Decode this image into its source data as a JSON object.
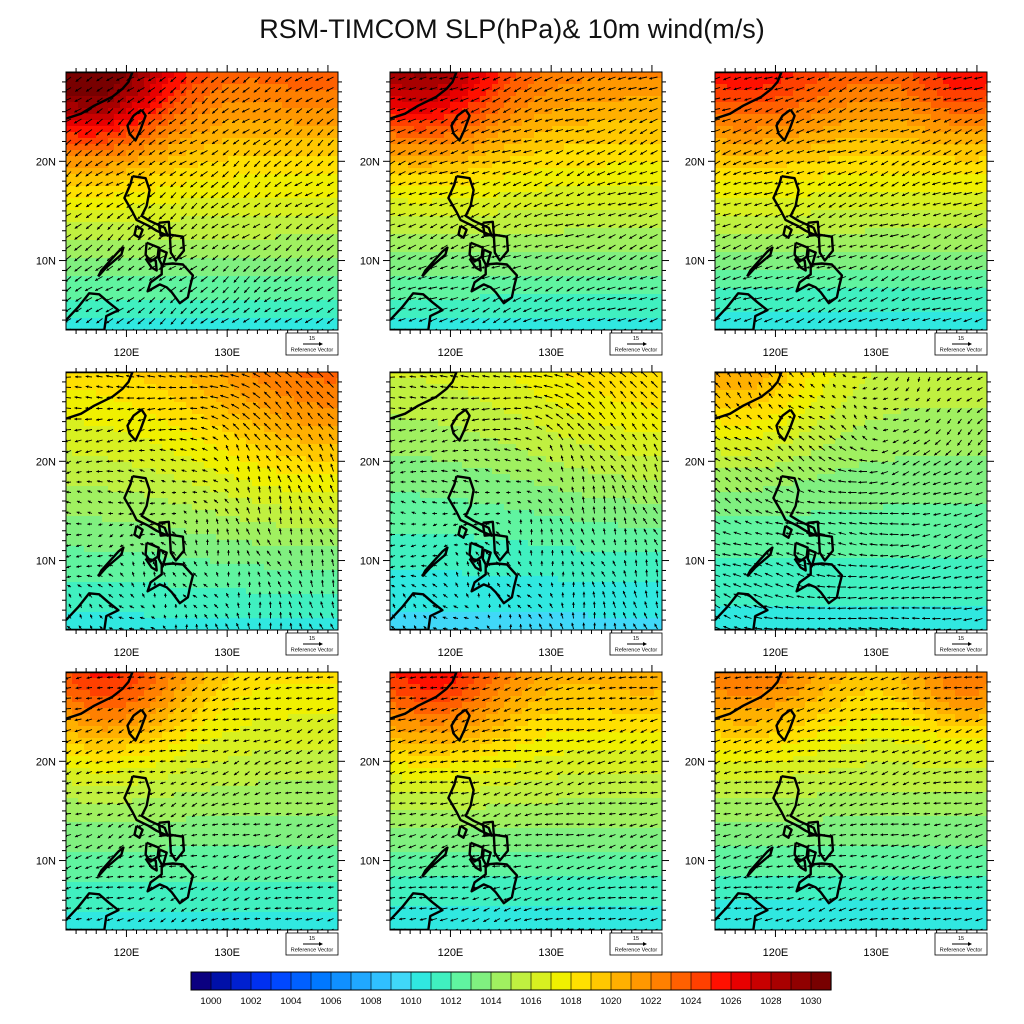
{
  "title": "RSM-TIMCOM SLP(hPa)& 10m wind(m/s)",
  "map": {
    "lon_range": [
      114,
      141
    ],
    "lat_range": [
      3,
      29
    ],
    "lon_ticks": [
      {
        "value": 120,
        "label": "120E"
      },
      {
        "value": 130,
        "label": "130E"
      }
    ],
    "lat_ticks": [
      {
        "value": 10,
        "label": "10N"
      },
      {
        "value": 20,
        "label": "20N"
      }
    ]
  },
  "reference_vector": {
    "value": "15",
    "label": "Reference Vector"
  },
  "colorbar": {
    "min": 999,
    "max": 1031,
    "labels": [
      "1000",
      "1002",
      "1004",
      "1006",
      "1008",
      "1010",
      "1012",
      "1014",
      "1016",
      "1018",
      "1020",
      "1022",
      "1024",
      "1026",
      "1028",
      "1030"
    ],
    "colors": [
      "#0b0080",
      "#0010a8",
      "#0020d0",
      "#0030f0",
      "#0048ff",
      "#0060ff",
      "#0078ff",
      "#1090ff",
      "#20a8ff",
      "#30c0ff",
      "#40d8f8",
      "#30e8e0",
      "#40f0c0",
      "#60f4a0",
      "#80f080",
      "#a0f060",
      "#c0f040",
      "#d8f020",
      "#f0f000",
      "#ffe000",
      "#ffc800",
      "#ffb000",
      "#ff9800",
      "#ff8000",
      "#ff6000",
      "#ff4000",
      "#ff1000",
      "#e80000",
      "#c80000",
      "#a80000",
      "#900000",
      "#780000"
    ]
  },
  "panels": [
    {
      "base": 1010.5,
      "lat_grad": 0.48,
      "hi_center": [
        116,
        29
      ],
      "hi_amp": 9,
      "hi_rad": 6,
      "ne_amp": 1,
      "u": -4,
      "v": -3,
      "swirl": 0
    },
    {
      "base": 1010.5,
      "lat_grad": 0.45,
      "hi_center": [
        117,
        29
      ],
      "hi_amp": 7,
      "hi_rad": 6,
      "ne_amp": 0,
      "u": -5,
      "v": -2,
      "swirl": 0
    },
    {
      "base": 1010,
      "lat_grad": 0.5,
      "hi_center": [
        117,
        29
      ],
      "hi_amp": 3,
      "hi_rad": 6,
      "ne_amp": 3,
      "u": -5,
      "v": -2,
      "swirl": 0
    },
    {
      "base": 1010.5,
      "lat_grad": 0.3,
      "hi_center": [
        140,
        29
      ],
      "hi_amp": 5,
      "hi_rad": 10,
      "ne_amp": 0,
      "u": -3,
      "v": 2,
      "swirl": 1
    },
    {
      "base": 1009.5,
      "lat_grad": 0.25,
      "hi_center": [
        140,
        29
      ],
      "hi_amp": 3,
      "hi_rad": 10,
      "ne_amp": 0,
      "u": -3,
      "v": 2,
      "swirl": 1
    },
    {
      "base": 1010.5,
      "lat_grad": 0.2,
      "hi_center": [
        116,
        29
      ],
      "hi_amp": 5,
      "hi_rad": 6,
      "ne_amp": 0,
      "u": -3,
      "v": 0,
      "swirl": -1
    },
    {
      "base": 1010.5,
      "lat_grad": 0.3,
      "hi_center": [
        118,
        29
      ],
      "hi_amp": 7,
      "hi_rad": 6,
      "ne_amp": 0,
      "u": -3,
      "v": -1,
      "swirl": 0
    },
    {
      "base": 1010,
      "lat_grad": 0.38,
      "hi_center": [
        118,
        29
      ],
      "hi_amp": 6,
      "hi_rad": 6,
      "ne_amp": 1,
      "u": -4,
      "v": -1,
      "swirl": 0
    },
    {
      "base": 1010,
      "lat_grad": 0.35,
      "hi_center": [
        117,
        29
      ],
      "hi_amp": 4,
      "hi_rad": 6,
      "ne_amp": 4,
      "u": -4,
      "v": -1,
      "swirl": 0
    }
  ]
}
